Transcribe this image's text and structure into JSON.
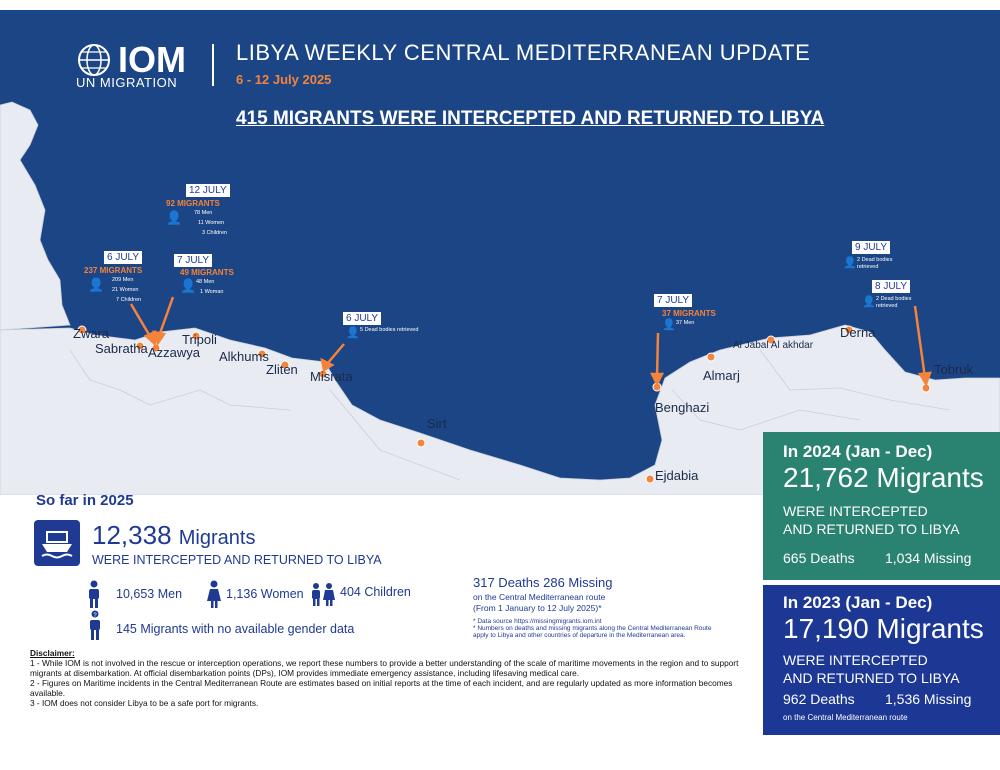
{
  "header": {
    "logo_text": "IOM",
    "logo_sub": "UN MIGRATION",
    "title": "LIBYA WEEKLY CENTRAL MEDITERRANEAN UPDATE",
    "dates": "6 - 12 July 2025",
    "headline": "415 MIGRANTS WERE INTERCEPTED AND RETURNED TO LIBYA"
  },
  "colors": {
    "sea": "#1c4585",
    "land": "#e8ecf2",
    "accent": "#f4833b",
    "navy": "#1f3a93",
    "green": "#2a8270",
    "blue": "#1c3794"
  },
  "cities": [
    "Zwara",
    "Sabratha",
    "Azzawya",
    "Tripoli",
    "Alkhums",
    "Zliten",
    "Misrata",
    "Sirt",
    "Benghazi",
    "Ejdabia",
    "Almarj",
    "Al Jabal Al akhdar",
    "Derna",
    "Tobruk"
  ],
  "events": [
    {
      "date": "6 JULY",
      "migrants": "237 MIGRANTS",
      "lines": [
        "209 Men",
        "21 Women",
        "7 Children"
      ]
    },
    {
      "date": "12 JULY",
      "migrants": "92 MIGRANTS",
      "lines": [
        "78 Men",
        "11 Women",
        "3 Children"
      ]
    },
    {
      "date": "7 JULY",
      "migrants": "49 MIGRANTS",
      "lines": [
        "48 Men",
        "1 Woman"
      ]
    },
    {
      "date": "6 JULY",
      "migrants": "",
      "lines": [
        "5 Dead bodies retrieved"
      ]
    },
    {
      "date": "7 JULY",
      "migrants": "37 MIGRANTS",
      "lines": [
        "37 Men"
      ]
    },
    {
      "date": "9 JULY",
      "migrants": "",
      "lines": [
        "2 Dead bodies",
        "retrieved"
      ]
    },
    {
      "date": "8 JULY",
      "migrants": "",
      "lines": [
        "2 Dead bodies",
        "retrieved"
      ]
    }
  ],
  "panel_2024": {
    "title": "In 2024 (Jan - Dec)",
    "number": "21,762 Migrants",
    "line1": "WERE INTERCEPTED",
    "line2": "AND RETURNED TO LIBYA",
    "deaths": "665 Deaths",
    "missing": "1,034 Missing"
  },
  "panel_2023": {
    "title": "In 2023 (Jan - Dec)",
    "number": "17,190 Migrants",
    "line1": "WERE INTERCEPTED",
    "line2": "AND RETURNED TO LIBYA",
    "deaths": "962 Deaths",
    "missing": "1,536 Missing",
    "route": "on the Central Mediterranean route"
  },
  "so_far": {
    "heading": "So far in 2025",
    "number": "12,338",
    "number_label": "Migrants",
    "sub": "WERE INTERCEPTED AND RETURNED TO LIBYA",
    "men": "10,653 Men",
    "women": "1,136 Women",
    "children": "404 Children",
    "unknown": "145 Migrants with no available gender data",
    "deaths_missing": "317 Deaths  286 Missing",
    "route": "on the Central Mediterranean route",
    "period": "(From 1 January to 12 July 2025)*",
    "note1": "*   Data source https://missingmigrants.iom.int",
    "note2": "*   Numbers on deaths and missing migrants along the Central Mediterranean Route",
    "note3": "apply to Libya and other countries of departure in the Mediterranean area."
  },
  "disclaimer": {
    "heading": "Disclaimer:",
    "p1": "1 - While IOM is not involved in the rescue or interception operations, we report these numbers to provide a better understanding of the scale of maritime movements in the region and to support migrants at disembarkation. At official disembarkation points (DPs), IOM provides immediate emergency assistance, including lifesaving medical care.",
    "p2": "2 - Figures on Maritime incidents in the Central Mediterranean Route are estimates based on initial reports at the time of each incident, and are regularly updated as more information becomes available.",
    "p3": "3 - IOM does not consider Libya to be a safe port for migrants."
  }
}
